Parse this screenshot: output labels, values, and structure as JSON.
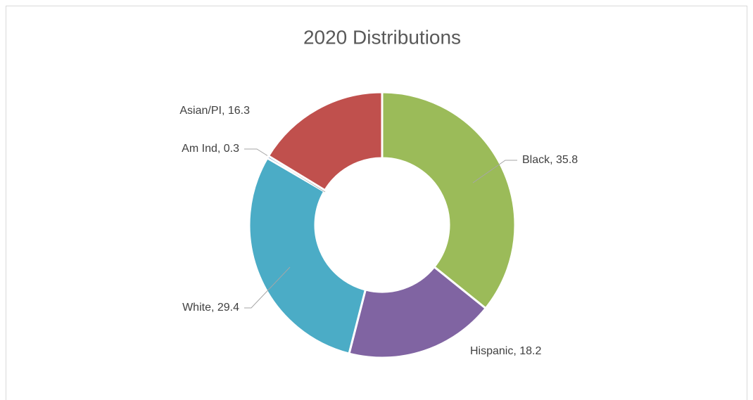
{
  "chart_data": {
    "type": "donut",
    "title": "2020 Distributions",
    "categories": [
      "Black",
      "Hispanic",
      "White",
      "Am Ind",
      "Asian/PI"
    ],
    "values": [
      35.8,
      18.2,
      29.4,
      0.3,
      16.3
    ],
    "value_labels": [
      "Black, 35.8",
      "Hispanic, 18.2",
      "White, 29.4",
      "Am Ind, 0.3",
      "Asian/PI, 16.3"
    ],
    "colors": [
      "#9bbb59",
      "#8064a2",
      "#4bacc6",
      "#4f81bd",
      "#c0504d"
    ]
  }
}
